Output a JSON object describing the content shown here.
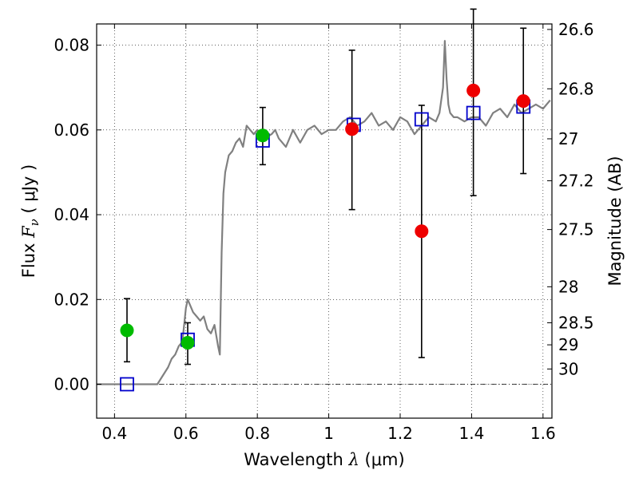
{
  "chart_data": {
    "type": "scatter",
    "xlabel_prefix": "Wavelength  ",
    "xlabel_symbol": "λ",
    "xlabel_unit": " (μm)",
    "ylabel_prefix": "Flux  ",
    "ylabel_symbol": "F",
    "ylabel_sub": "ν",
    "ylabel_unit": "  ( μJy )",
    "ylabel_right": "Magnitude (AB)",
    "xlim": [
      0.35,
      1.625
    ],
    "ylim": [
      -0.008,
      0.085
    ],
    "x_ticks": [
      {
        "value": 0.4,
        "label": "0.4"
      },
      {
        "value": 0.6,
        "label": "0.6"
      },
      {
        "value": 0.8,
        "label": "0.8"
      },
      {
        "value": 1.0,
        "label": "1"
      },
      {
        "value": 1.2,
        "label": "1.2"
      },
      {
        "value": 1.4,
        "label": "1.4"
      },
      {
        "value": 1.6,
        "label": "1.6"
      }
    ],
    "y_ticks": [
      {
        "value": 0.0,
        "label": "0.00"
      },
      {
        "value": 0.02,
        "label": "0.02"
      },
      {
        "value": 0.04,
        "label": "0.04"
      },
      {
        "value": 0.06,
        "label": "0.06"
      },
      {
        "value": 0.08,
        "label": "0.08"
      }
    ],
    "right_ticks": [
      {
        "flux": 0.0837,
        "label": "26.6"
      },
      {
        "flux": 0.0697,
        "label": "26.8"
      },
      {
        "flux": 0.0579,
        "label": "27"
      },
      {
        "flux": 0.048,
        "label": "27.2"
      },
      {
        "flux": 0.0365,
        "label": "27.5"
      },
      {
        "flux": 0.023,
        "label": "28"
      },
      {
        "flux": 0.0145,
        "label": "28.5"
      },
      {
        "flux": 0.0093,
        "label": "29"
      },
      {
        "flux": 0.0036,
        "label": "30"
      }
    ],
    "grid": true,
    "zero_line": true,
    "series": [
      {
        "marker": "line",
        "color": "#808080",
        "x": [
          0.35,
          0.52,
          0.55,
          0.56,
          0.57,
          0.58,
          0.59,
          0.6,
          0.605,
          0.61,
          0.62,
          0.63,
          0.64,
          0.65,
          0.66,
          0.67,
          0.68,
          0.69,
          0.695,
          0.7,
          0.705,
          0.71,
          0.72,
          0.73,
          0.74,
          0.75,
          0.76,
          0.77,
          0.78,
          0.79,
          0.8,
          0.82,
          0.84,
          0.85,
          0.86,
          0.88,
          0.9,
          0.92,
          0.94,
          0.96,
          0.98,
          1.0,
          1.02,
          1.04,
          1.06,
          1.08,
          1.1,
          1.12,
          1.14,
          1.16,
          1.18,
          1.2,
          1.22,
          1.24,
          1.26,
          1.28,
          1.3,
          1.31,
          1.32,
          1.325,
          1.33,
          1.335,
          1.34,
          1.35,
          1.36,
          1.38,
          1.4,
          1.42,
          1.44,
          1.46,
          1.48,
          1.5,
          1.52,
          1.54,
          1.56,
          1.58,
          1.6,
          1.62
        ],
        "y": [
          0.0,
          0.0,
          0.004,
          0.006,
          0.007,
          0.009,
          0.01,
          0.018,
          0.02,
          0.019,
          0.017,
          0.016,
          0.015,
          0.016,
          0.013,
          0.012,
          0.014,
          0.009,
          0.007,
          0.031,
          0.045,
          0.05,
          0.054,
          0.055,
          0.057,
          0.058,
          0.056,
          0.061,
          0.06,
          0.059,
          0.06,
          0.058,
          0.059,
          0.06,
          0.058,
          0.056,
          0.06,
          0.057,
          0.06,
          0.061,
          0.059,
          0.06,
          0.06,
          0.062,
          0.063,
          0.061,
          0.062,
          0.064,
          0.061,
          0.062,
          0.06,
          0.063,
          0.062,
          0.059,
          0.061,
          0.063,
          0.062,
          0.064,
          0.07,
          0.081,
          0.072,
          0.066,
          0.064,
          0.063,
          0.063,
          0.062,
          0.063,
          0.063,
          0.061,
          0.064,
          0.065,
          0.063,
          0.066,
          0.064,
          0.065,
          0.066,
          0.065,
          0.067
        ]
      },
      {
        "marker": "square",
        "color": "#0000cc",
        "x": [
          0.435,
          0.605,
          0.815,
          1.07,
          1.26,
          1.405,
          1.545
        ],
        "y": [
          0.0,
          0.0105,
          0.0575,
          0.0612,
          0.0625,
          0.064,
          0.0655
        ]
      },
      {
        "marker": "circle",
        "color": "#00bb00",
        "x": [
          0.435,
          0.605,
          0.815
        ],
        "y": [
          0.0127,
          0.0098,
          0.0587
        ],
        "yerr_low": [
          0.0053,
          0.0047,
          0.0518
        ],
        "yerr_high": [
          0.0202,
          0.0145,
          0.0653
        ]
      },
      {
        "marker": "circle",
        "color": "#ee0000",
        "x": [
          1.065,
          1.26,
          1.405,
          1.545
        ],
        "y": [
          0.0602,
          0.0361,
          0.0693,
          0.0668
        ],
        "yerr_low": [
          0.0412,
          0.0063,
          0.0445,
          0.0497
        ],
        "yerr_high": [
          0.0788,
          0.0658,
          0.0885,
          0.084
        ]
      }
    ]
  }
}
